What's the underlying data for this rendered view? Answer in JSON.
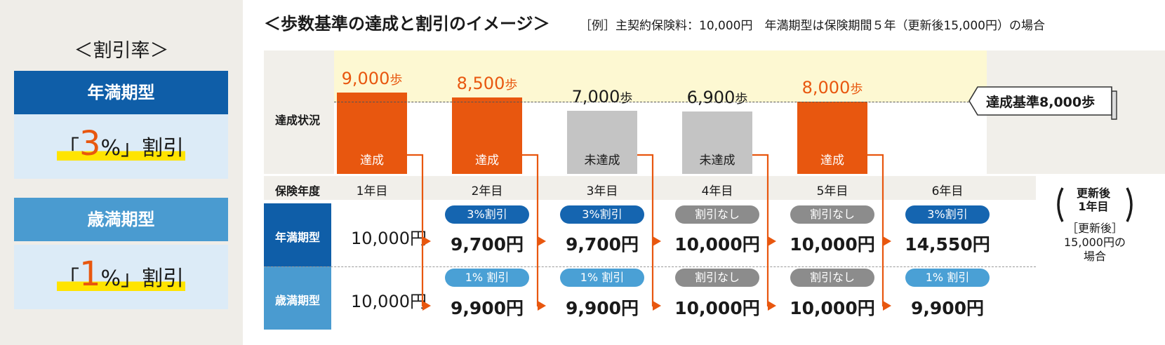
{
  "left": {
    "title": "＜割引率＞",
    "plans": [
      {
        "name": "年満期型",
        "prefix": "「",
        "pct": "3",
        "suffix": "%」割引",
        "color": "#0f5ea8"
      },
      {
        "name": "歳満期型",
        "prefix": "「",
        "pct": "1",
        "suffix": "%」割引",
        "color": "#4a9bd0"
      }
    ]
  },
  "chart": {
    "title": "＜歩数基準の達成と割引のイメージ＞",
    "note": "［例］主契約保険料：10,000円　年満期型は保険期間５年（更新後15,000円）の場合",
    "row_labels": {
      "status": "達成状況",
      "year": "保険年度",
      "plan_a": "年満期型",
      "plan_b": "歳満期型"
    },
    "threshold_label": "達成基準8,000歩",
    "threshold": 8000,
    "step_unit": "歩",
    "base_price": "10,000円",
    "bars": [
      {
        "steps": 9000,
        "steps_text": "9,000",
        "status": "達成",
        "achieved": true
      },
      {
        "steps": 8500,
        "steps_text": "8,500",
        "status": "達成",
        "achieved": true
      },
      {
        "steps": 7000,
        "steps_text": "7,000",
        "status": "未達成",
        "achieved": false
      },
      {
        "steps": 6900,
        "steps_text": "6,900",
        "status": "未達成",
        "achieved": false
      },
      {
        "steps": 8000,
        "steps_text": "8,000",
        "status": "達成",
        "achieved": true
      }
    ],
    "years": [
      "1年目",
      "2年目",
      "3年目",
      "4年目",
      "5年目",
      "6年目"
    ],
    "plan_a": [
      {
        "pill": "3%割引",
        "price": "9,700円",
        "discount": true
      },
      {
        "pill": "3%割引",
        "price": "9,700円",
        "discount": true
      },
      {
        "pill": "割引なし",
        "price": "10,000円",
        "discount": false
      },
      {
        "pill": "割引なし",
        "price": "10,000円",
        "discount": false
      },
      {
        "pill": "3%割引",
        "price": "14,550円",
        "discount": true
      }
    ],
    "plan_b": [
      {
        "pill": "1% 割引",
        "price": "9,900円",
        "discount": true
      },
      {
        "pill": "1% 割引",
        "price": "9,900円",
        "discount": true
      },
      {
        "pill": "割引なし",
        "price": "10,000円",
        "discount": false
      },
      {
        "pill": "割引なし",
        "price": "10,000円",
        "discount": false
      },
      {
        "pill": "1% 割引",
        "price": "9,900円",
        "discount": true
      }
    ],
    "renew_note_1": "更新後\n1年目",
    "renew_note_2": "［更新後］\n15,000円の場合",
    "colors": {
      "achieved": "#e8570f",
      "not_achieved": "#c4c4c4",
      "plan_a": "#0f5ea8",
      "plan_b": "#4a9bd0",
      "pill_a": "#1565b0",
      "pill_b": "#4aa0d5",
      "pill_none": "#8c8c8c"
    }
  }
}
